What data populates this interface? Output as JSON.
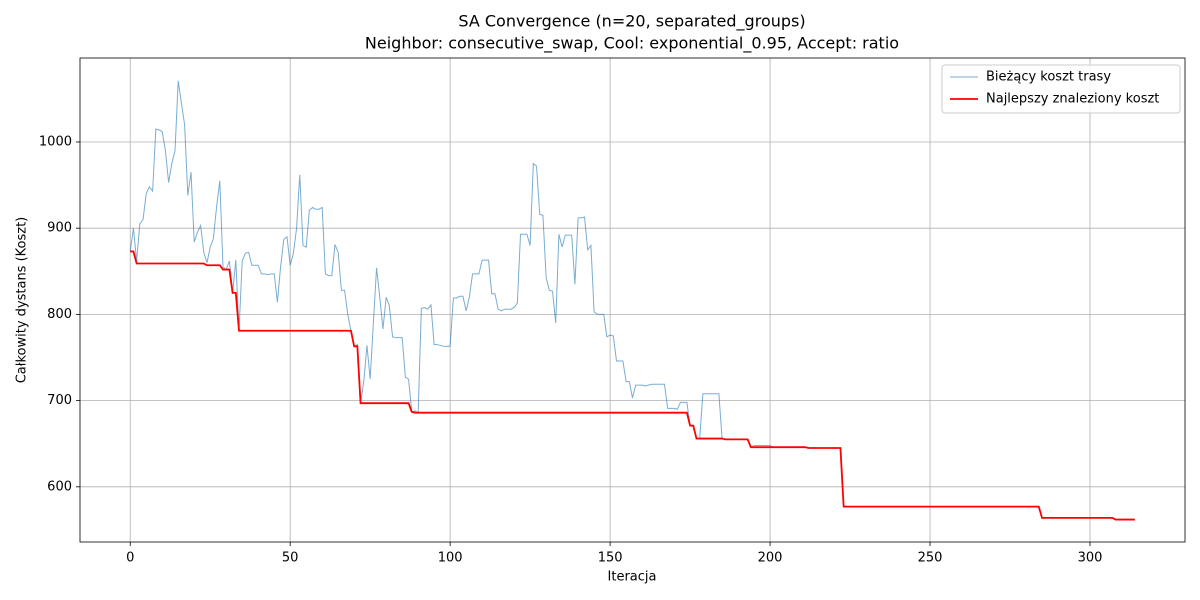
{
  "chart_data": {
    "type": "line",
    "title": "SA Convergence (n=20, separated_groups)",
    "subtitle": "Neighbor: consecutive_swap, Cool: exponential_0.95, Accept: ratio",
    "x_label": "Iteracja",
    "y_label": "Całkowity dystans (Koszt)",
    "xlim": [
      -15.7,
      329.7
    ],
    "ylim": [
      536,
      1097.4
    ],
    "xticks": [
      0,
      50,
      100,
      150,
      200,
      250,
      300
    ],
    "yticks": [
      600,
      700,
      800,
      900,
      1000
    ],
    "grid": true,
    "legend": "upper right",
    "series": [
      {
        "name": "Bieżący koszt trasy",
        "color": "#1f77b4",
        "values": [
          873,
          900,
          862,
          905,
          910,
          940,
          948,
          943,
          1015,
          1014,
          1012,
          990,
          953,
          975,
          990,
          1071,
          1045,
          1020,
          938,
          965,
          884,
          895,
          903,
          872,
          860,
          878,
          888,
          925,
          955,
          855,
          852,
          862,
          825,
          863,
          781,
          862,
          871,
          872,
          857,
          857,
          857,
          847,
          847,
          846,
          847,
          847,
          814,
          855,
          887,
          890,
          857,
          871,
          900,
          962,
          880,
          878,
          921,
          924,
          922,
          922,
          924,
          847,
          845,
          845,
          881,
          872,
          828,
          828,
          800,
          781,
          763,
          765,
          697,
          722,
          764,
          725,
          790,
          854,
          820,
          783,
          820,
          810,
          774,
          773,
          773,
          773,
          727,
          725,
          687,
          688,
          686,
          807,
          808,
          806,
          811,
          765,
          765,
          764,
          763,
          763,
          763,
          819,
          819,
          821,
          821,
          804,
          820,
          847,
          847,
          847,
          863,
          863,
          863,
          824,
          824,
          806,
          804,
          806,
          806,
          806,
          808,
          813,
          893,
          893,
          893,
          880,
          975,
          972,
          916,
          915,
          843,
          828,
          827,
          790,
          893,
          878,
          892,
          892,
          892,
          835,
          912,
          912,
          913,
          875,
          880,
          803,
          800,
          800,
          800,
          774,
          776,
          775,
          746,
          746,
          746,
          722,
          722,
          703,
          718,
          718,
          718,
          717,
          718,
          719,
          719,
          719,
          719,
          719,
          691,
          691,
          691,
          690,
          698,
          698,
          698,
          671,
          671,
          656,
          656,
          708,
          708,
          708,
          708,
          708,
          708,
          656,
          655,
          655,
          655,
          655,
          655,
          655,
          655,
          655,
          646,
          648,
          648,
          648,
          648,
          648,
          648,
          646,
          646,
          646,
          646,
          646,
          646,
          646,
          646,
          646,
          646,
          646,
          645,
          645,
          645,
          645,
          645,
          645,
          645,
          645,
          645,
          645,
          645,
          577,
          577,
          577,
          577,
          577,
          577,
          577,
          577,
          577,
          577,
          577,
          577,
          577,
          577,
          577,
          577,
          577,
          577,
          577,
          577,
          577,
          577,
          577,
          577,
          577,
          577,
          577,
          577,
          577,
          577,
          577,
          577,
          577,
          577,
          577,
          577,
          577,
          577,
          577,
          577,
          577,
          577,
          577,
          577,
          577,
          577,
          577,
          577,
          577,
          577,
          577,
          577,
          577,
          577,
          577,
          577,
          577,
          577,
          577,
          577,
          577,
          577,
          564,
          564,
          564,
          564,
          564,
          564,
          564,
          564,
          564,
          564,
          564,
          564,
          564,
          564,
          564,
          564,
          564,
          564,
          564,
          564,
          564,
          564,
          564,
          562,
          562,
          562,
          562,
          562,
          562,
          562
        ]
      },
      {
        "name": "Najlepszy znaleziony koszt",
        "color": "#ff0000",
        "values": [
          873,
          873,
          859,
          859,
          859,
          859,
          859,
          859,
          859,
          859,
          859,
          859,
          859,
          859,
          859,
          859,
          859,
          859,
          859,
          859,
          859,
          859,
          859,
          859,
          857,
          857,
          857,
          857,
          857,
          852,
          852,
          852,
          825,
          825,
          781,
          781,
          781,
          781,
          781,
          781,
          781,
          781,
          781,
          781,
          781,
          781,
          781,
          781,
          781,
          781,
          781,
          781,
          781,
          781,
          781,
          781,
          781,
          781,
          781,
          781,
          781,
          781,
          781,
          781,
          781,
          781,
          781,
          781,
          781,
          781,
          763,
          763,
          697,
          697,
          697,
          697,
          697,
          697,
          697,
          697,
          697,
          697,
          697,
          697,
          697,
          697,
          697,
          697,
          687,
          686,
          686,
          686,
          686,
          686,
          686,
          686,
          686,
          686,
          686,
          686,
          686,
          686,
          686,
          686,
          686,
          686,
          686,
          686,
          686,
          686,
          686,
          686,
          686,
          686,
          686,
          686,
          686,
          686,
          686,
          686,
          686,
          686,
          686,
          686,
          686,
          686,
          686,
          686,
          686,
          686,
          686,
          686,
          686,
          686,
          686,
          686,
          686,
          686,
          686,
          686,
          686,
          686,
          686,
          686,
          686,
          686,
          686,
          686,
          686,
          686,
          686,
          686,
          686,
          686,
          686,
          686,
          686,
          686,
          686,
          686,
          686,
          686,
          686,
          686,
          686,
          686,
          686,
          686,
          686,
          686,
          686,
          686,
          686,
          686,
          686,
          671,
          671,
          656,
          656,
          656,
          656,
          656,
          656,
          656,
          656,
          656,
          655,
          655,
          655,
          655,
          655,
          655,
          655,
          655,
          646,
          646,
          646,
          646,
          646,
          646,
          646,
          646,
          646,
          646,
          646,
          646,
          646,
          646,
          646,
          646,
          646,
          646,
          645,
          645,
          645,
          645,
          645,
          645,
          645,
          645,
          645,
          645,
          645,
          577,
          577,
          577,
          577,
          577,
          577,
          577,
          577,
          577,
          577,
          577,
          577,
          577,
          577,
          577,
          577,
          577,
          577,
          577,
          577,
          577,
          577,
          577,
          577,
          577,
          577,
          577,
          577,
          577,
          577,
          577,
          577,
          577,
          577,
          577,
          577,
          577,
          577,
          577,
          577,
          577,
          577,
          577,
          577,
          577,
          577,
          577,
          577,
          577,
          577,
          577,
          577,
          577,
          577,
          577,
          577,
          577,
          577,
          577,
          577,
          577,
          577,
          564,
          564,
          564,
          564,
          564,
          564,
          564,
          564,
          564,
          564,
          564,
          564,
          564,
          564,
          564,
          564,
          564,
          564,
          564,
          564,
          564,
          564,
          564,
          562,
          562,
          562,
          562,
          562,
          562,
          562
        ]
      }
    ]
  }
}
